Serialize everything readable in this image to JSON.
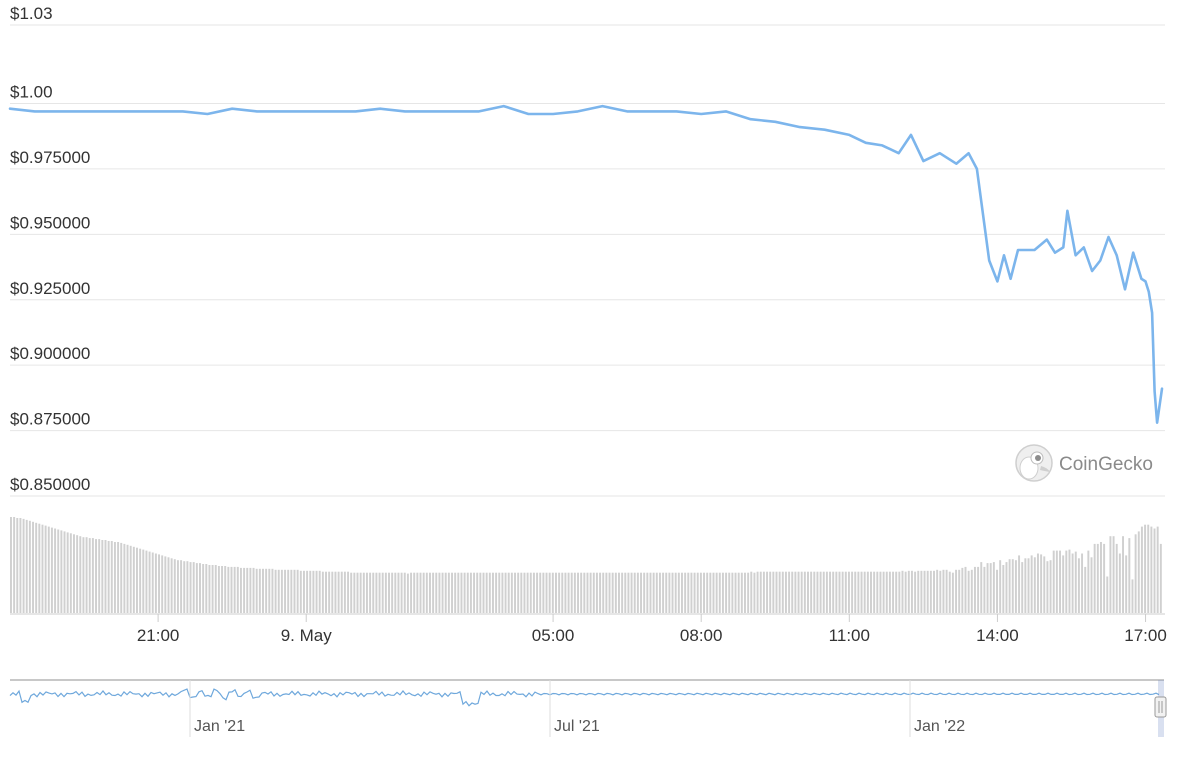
{
  "chart_data": {
    "type": "line",
    "brand": "CoinGecko",
    "y_axis": {
      "ticks": [
        {
          "value": 1.03,
          "label": "$1.03"
        },
        {
          "value": 1.0,
          "label": "$1.00"
        },
        {
          "value": 0.975,
          "label": "$0.975000"
        },
        {
          "value": 0.95,
          "label": "$0.950000"
        },
        {
          "value": 0.925,
          "label": "$0.925000"
        },
        {
          "value": 0.9,
          "label": "$0.900000"
        },
        {
          "value": 0.875,
          "label": "$0.875000"
        },
        {
          "value": 0.85,
          "label": "$0.850000"
        }
      ],
      "range": [
        0.85,
        1.03
      ],
      "grid": true
    },
    "x_axis": {
      "range": [
        "2022-05-08T18:00",
        "2022-05-09T17:20"
      ],
      "ticks": [
        {
          "t": "2022-05-08T21:00",
          "label": "21:00"
        },
        {
          "t": "2022-05-09T00:00",
          "label": "9. May"
        },
        {
          "t": "2022-05-09T05:00",
          "label": "05:00"
        },
        {
          "t": "2022-05-09T08:00",
          "label": "08:00"
        },
        {
          "t": "2022-05-09T11:00",
          "label": "11:00"
        },
        {
          "t": "2022-05-09T14:00",
          "label": "14:00"
        },
        {
          "t": "2022-05-09T17:00",
          "label": "17:00"
        }
      ]
    },
    "series": [
      {
        "type": "line",
        "color": "#7cb5ec",
        "points": [
          [
            "2022-05-08T18:00",
            0.998
          ],
          [
            "2022-05-08T18:30",
            0.997
          ],
          [
            "2022-05-08T19:00",
            0.997
          ],
          [
            "2022-05-08T19:30",
            0.997
          ],
          [
            "2022-05-08T20:00",
            0.997
          ],
          [
            "2022-05-08T20:30",
            0.997
          ],
          [
            "2022-05-08T21:00",
            0.997
          ],
          [
            "2022-05-08T21:30",
            0.997
          ],
          [
            "2022-05-08T22:00",
            0.996
          ],
          [
            "2022-05-08T22:30",
            0.998
          ],
          [
            "2022-05-08T23:00",
            0.997
          ],
          [
            "2022-05-08T23:30",
            0.997
          ],
          [
            "2022-05-09T00:00",
            0.997
          ],
          [
            "2022-05-09T00:30",
            0.997
          ],
          [
            "2022-05-09T01:00",
            0.997
          ],
          [
            "2022-05-09T01:30",
            0.998
          ],
          [
            "2022-05-09T02:00",
            0.997
          ],
          [
            "2022-05-09T02:30",
            0.997
          ],
          [
            "2022-05-09T03:00",
            0.997
          ],
          [
            "2022-05-09T03:30",
            0.997
          ],
          [
            "2022-05-09T04:00",
            0.999
          ],
          [
            "2022-05-09T04:30",
            0.996
          ],
          [
            "2022-05-09T05:00",
            0.996
          ],
          [
            "2022-05-09T05:30",
            0.997
          ],
          [
            "2022-05-09T06:00",
            0.999
          ],
          [
            "2022-05-09T06:30",
            0.997
          ],
          [
            "2022-05-09T07:00",
            0.997
          ],
          [
            "2022-05-09T07:30",
            0.997
          ],
          [
            "2022-05-09T08:00",
            0.996
          ],
          [
            "2022-05-09T08:30",
            0.997
          ],
          [
            "2022-05-09T09:00",
            0.994
          ],
          [
            "2022-05-09T09:30",
            0.993
          ],
          [
            "2022-05-09T10:00",
            0.991
          ],
          [
            "2022-05-09T10:30",
            0.99
          ],
          [
            "2022-05-09T11:00",
            0.988
          ],
          [
            "2022-05-09T11:20",
            0.985
          ],
          [
            "2022-05-09T11:40",
            0.984
          ],
          [
            "2022-05-09T12:00",
            0.981
          ],
          [
            "2022-05-09T12:15",
            0.988
          ],
          [
            "2022-05-09T12:30",
            0.978
          ],
          [
            "2022-05-09T12:50",
            0.981
          ],
          [
            "2022-05-09T13:10",
            0.977
          ],
          [
            "2022-05-09T13:25",
            0.981
          ],
          [
            "2022-05-09T13:35",
            0.975
          ],
          [
            "2022-05-09T13:50",
            0.94
          ],
          [
            "2022-05-09T14:00",
            0.932
          ],
          [
            "2022-05-09T14:08",
            0.942
          ],
          [
            "2022-05-09T14:16",
            0.933
          ],
          [
            "2022-05-09T14:25",
            0.944
          ],
          [
            "2022-05-09T14:45",
            0.944
          ],
          [
            "2022-05-09T15:00",
            0.948
          ],
          [
            "2022-05-09T15:10",
            0.943
          ],
          [
            "2022-05-09T15:20",
            0.945
          ],
          [
            "2022-05-09T15:25",
            0.959
          ],
          [
            "2022-05-09T15:35",
            0.942
          ],
          [
            "2022-05-09T15:45",
            0.945
          ],
          [
            "2022-05-09T15:55",
            0.936
          ],
          [
            "2022-05-09T16:05",
            0.94
          ],
          [
            "2022-05-09T16:15",
            0.949
          ],
          [
            "2022-05-09T16:25",
            0.942
          ],
          [
            "2022-05-09T16:35",
            0.929
          ],
          [
            "2022-05-09T16:45",
            0.943
          ],
          [
            "2022-05-09T16:55",
            0.933
          ],
          [
            "2022-05-09T17:00",
            0.932
          ],
          [
            "2022-05-09T17:04",
            0.928
          ],
          [
            "2022-05-09T17:08",
            0.92
          ],
          [
            "2022-05-09T17:11",
            0.89
          ],
          [
            "2022-05-09T17:14",
            0.878
          ],
          [
            "2022-05-09T17:20",
            0.891
          ]
        ]
      },
      {
        "type": "volume-bars",
        "color": "#d0d0d0",
        "relative_heights": [
          1.0,
          1.0,
          0.99,
          0.99,
          0.98,
          0.97,
          0.96,
          0.95,
          0.94,
          0.93,
          0.92,
          0.91,
          0.9,
          0.89,
          0.88,
          0.87,
          0.86,
          0.85,
          0.84,
          0.83,
          0.82,
          0.81,
          0.8,
          0.79,
          0.79,
          0.78,
          0.78,
          0.77,
          0.77,
          0.76,
          0.76,
          0.75,
          0.75,
          0.74,
          0.74,
          0.73,
          0.72,
          0.71,
          0.7,
          0.69,
          0.68,
          0.67,
          0.66,
          0.65,
          0.64,
          0.63,
          0.62,
          0.61,
          0.6,
          0.59,
          0.58,
          0.57,
          0.56,
          0.55,
          0.55,
          0.54,
          0.54,
          0.53,
          0.53,
          0.52,
          0.52,
          0.51,
          0.51,
          0.5,
          0.5,
          0.5,
          0.49,
          0.49,
          0.49,
          0.48,
          0.48,
          0.48,
          0.48,
          0.47,
          0.47,
          0.47,
          0.47,
          0.47,
          0.46,
          0.46,
          0.46,
          0.46,
          0.46,
          0.46,
          0.45,
          0.45,
          0.45,
          0.45,
          0.45,
          0.45,
          0.45,
          0.45,
          0.44,
          0.44,
          0.44,
          0.44,
          0.44,
          0.44,
          0.44,
          0.43,
          0.43,
          0.43,
          0.43,
          0.43,
          0.43,
          0.43,
          0.43,
          0.43,
          0.42,
          0.42,
          0.42,
          0.42,
          0.42,
          0.42,
          0.42,
          0.42,
          0.42,
          0.42,
          0.42,
          0.42,
          0.42,
          0.42,
          0.42,
          0.42,
          0.42,
          0.42,
          0.41,
          0.42,
          0.42,
          0.42,
          0.42,
          0.42,
          0.42,
          0.42,
          0.42,
          0.42,
          0.42,
          0.42,
          0.42,
          0.42,
          0.42,
          0.42,
          0.42,
          0.42,
          0.42,
          0.42,
          0.42,
          0.42,
          0.42,
          0.42,
          0.42,
          0.42,
          0.42,
          0.42,
          0.42,
          0.42,
          0.42,
          0.42,
          0.42,
          0.42,
          0.42,
          0.42,
          0.42,
          0.42,
          0.42,
          0.42,
          0.42,
          0.42,
          0.42,
          0.42,
          0.42,
          0.42,
          0.42,
          0.42,
          0.42,
          0.42,
          0.42,
          0.42,
          0.42,
          0.42,
          0.42,
          0.42,
          0.42,
          0.42,
          0.42,
          0.42,
          0.42,
          0.42,
          0.42,
          0.42,
          0.42,
          0.42,
          0.42,
          0.42,
          0.42,
          0.42,
          0.42,
          0.42,
          0.42,
          0.42,
          0.42,
          0.42,
          0.42,
          0.42,
          0.42,
          0.42,
          0.42,
          0.42,
          0.42,
          0.42,
          0.42,
          0.42,
          0.42,
          0.42,
          0.42,
          0.42,
          0.42,
          0.42,
          0.42,
          0.42,
          0.42,
          0.42,
          0.42,
          0.42,
          0.42,
          0.42,
          0.42,
          0.42,
          0.42,
          0.42,
          0.42,
          0.42,
          0.42,
          0.42,
          0.42,
          0.43,
          0.42,
          0.43,
          0.43,
          0.43,
          0.43,
          0.43,
          0.43,
          0.43,
          0.43,
          0.43,
          0.43,
          0.43,
          0.43,
          0.43,
          0.43,
          0.43,
          0.43,
          0.43,
          0.43,
          0.43,
          0.43,
          0.43,
          0.43,
          0.43,
          0.43,
          0.43,
          0.43,
          0.43,
          0.43,
          0.43,
          0.43,
          0.43,
          0.43,
          0.43,
          0.43,
          0.43,
          0.43,
          0.43,
          0.43,
          0.43,
          0.43,
          0.43,
          0.43,
          0.43,
          0.43,
          0.43,
          0.43,
          0.44,
          0.43,
          0.44,
          0.44,
          0.43,
          0.44,
          0.44,
          0.44,
          0.44,
          0.44,
          0.44,
          0.45,
          0.44,
          0.45,
          0.45,
          0.43,
          0.42,
          0.45,
          0.45,
          0.47,
          0.48,
          0.44,
          0.45,
          0.48,
          0.48,
          0.53,
          0.48,
          0.52,
          0.52,
          0.53,
          0.45,
          0.55,
          0.5,
          0.53,
          0.56,
          0.56,
          0.55,
          0.6,
          0.53,
          0.57,
          0.57,
          0.6,
          0.58,
          0.62,
          0.61,
          0.59,
          0.54,
          0.55,
          0.65,
          0.65,
          0.65,
          0.6,
          0.65,
          0.66,
          0.62,
          0.64,
          0.57,
          0.62,
          0.48,
          0.65,
          0.58,
          0.72,
          0.72,
          0.74,
          0.72,
          0.38,
          0.8,
          0.8,
          0.72,
          0.62,
          0.8,
          0.6,
          0.78,
          0.35,
          0.82,
          0.85,
          0.9,
          0.92,
          0.92,
          0.9,
          0.88,
          0.9,
          0.72
        ]
      }
    ],
    "navigator": {
      "ticks": [
        {
          "label": "Jan '21"
        },
        {
          "label": "Jul '21"
        },
        {
          "label": "Jan '22"
        }
      ]
    }
  }
}
